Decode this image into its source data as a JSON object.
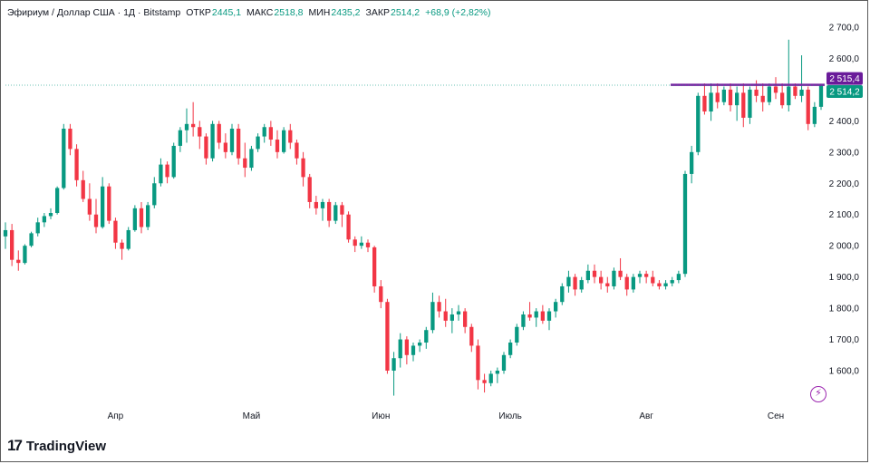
{
  "header": {
    "symbol": "Эфириум / Доллар США · 1Д · Bitstamp",
    "open_label": "ОТКР",
    "open": "2445,1",
    "high_label": "МАКС",
    "high": "2518,8",
    "low_label": "МИН",
    "low": "2435,2",
    "close_label": "ЗАКР",
    "close": "2514,2",
    "change": "+68,9 (+2,82%)"
  },
  "brand": {
    "name": "TradingView",
    "mark": "17"
  },
  "colors": {
    "up": "#089981",
    "down": "#f23645",
    "line": "#7b1fa2",
    "price_tag": "#089981",
    "line_tag": "#6a1b9a"
  },
  "chart_data": {
    "type": "candlestick",
    "price_scale": {
      "min": 1500,
      "max": 2700,
      "ticks": [
        "2 700,0",
        "2 600,0",
        "2 500,0",
        "2 400,0",
        "2 300,0",
        "2 200,0",
        "2 100,0",
        "2 000,0",
        "1 900,0",
        "1 800,0",
        "1 700,0",
        "1 600,0"
      ]
    },
    "time_labels": [
      {
        "label": "Апр",
        "index": 17
      },
      {
        "label": "Май",
        "index": 38
      },
      {
        "label": "Июн",
        "index": 58
      },
      {
        "label": "Июль",
        "index": 78
      },
      {
        "label": "Авг",
        "index": 99
      },
      {
        "label": "Сен",
        "index": 119
      }
    ],
    "horizontal_line": {
      "value": 2515.4,
      "label": "2 515,4"
    },
    "last_price": {
      "value": 2514.2,
      "label": "2 514,2"
    },
    "candles": [
      [
        2030,
        2075,
        1990,
        2050
      ],
      [
        2050,
        2070,
        1935,
        1955
      ],
      [
        1955,
        1985,
        1920,
        1945
      ],
      [
        1945,
        2005,
        1940,
        2000
      ],
      [
        2000,
        2045,
        1995,
        2040
      ],
      [
        2040,
        2090,
        2030,
        2075
      ],
      [
        2075,
        2105,
        2060,
        2095
      ],
      [
        2095,
        2120,
        2085,
        2105
      ],
      [
        2105,
        2190,
        2100,
        2185
      ],
      [
        2185,
        2390,
        2180,
        2375
      ],
      [
        2375,
        2390,
        2290,
        2310
      ],
      [
        2310,
        2325,
        2190,
        2210
      ],
      [
        2210,
        2240,
        2140,
        2150
      ],
      [
        2150,
        2200,
        2080,
        2100
      ],
      [
        2100,
        2150,
        2040,
        2060
      ],
      [
        2060,
        2220,
        2055,
        2190
      ],
      [
        2190,
        2200,
        2070,
        2080
      ],
      [
        2080,
        2090,
        1990,
        2010
      ],
      [
        2010,
        2020,
        1955,
        1990
      ],
      [
        1990,
        2060,
        1985,
        2050
      ],
      [
        2050,
        2130,
        2045,
        2120
      ],
      [
        2120,
        2140,
        2040,
        2060
      ],
      [
        2060,
        2140,
        2050,
        2130
      ],
      [
        2130,
        2220,
        2120,
        2200
      ],
      [
        2200,
        2280,
        2190,
        2260
      ],
      [
        2260,
        2270,
        2200,
        2220
      ],
      [
        2220,
        2330,
        2215,
        2320
      ],
      [
        2320,
        2380,
        2300,
        2370
      ],
      [
        2370,
        2440,
        2330,
        2390
      ],
      [
        2390,
        2460,
        2350,
        2380
      ],
      [
        2380,
        2400,
        2310,
        2350
      ],
      [
        2350,
        2360,
        2260,
        2280
      ],
      [
        2280,
        2400,
        2270,
        2390
      ],
      [
        2390,
        2400,
        2310,
        2330
      ],
      [
        2330,
        2360,
        2280,
        2300
      ],
      [
        2300,
        2390,
        2290,
        2375
      ],
      [
        2375,
        2390,
        2260,
        2280
      ],
      [
        2280,
        2330,
        2220,
        2250
      ],
      [
        2250,
        2320,
        2240,
        2310
      ],
      [
        2310,
        2360,
        2300,
        2350
      ],
      [
        2350,
        2390,
        2330,
        2380
      ],
      [
        2380,
        2400,
        2320,
        2340
      ],
      [
        2340,
        2370,
        2280,
        2300
      ],
      [
        2300,
        2380,
        2295,
        2370
      ],
      [
        2370,
        2390,
        2310,
        2330
      ],
      [
        2330,
        2340,
        2260,
        2280
      ],
      [
        2280,
        2300,
        2190,
        2220
      ],
      [
        2220,
        2230,
        2120,
        2140
      ],
      [
        2140,
        2160,
        2100,
        2120
      ],
      [
        2120,
        2150,
        2080,
        2140
      ],
      [
        2140,
        2150,
        2060,
        2080
      ],
      [
        2080,
        2140,
        2070,
        2130
      ],
      [
        2130,
        2140,
        2060,
        2100
      ],
      [
        2100,
        2110,
        2010,
        2020
      ],
      [
        2020,
        2030,
        1980,
        2000
      ],
      [
        2000,
        2030,
        1990,
        2010
      ],
      [
        2010,
        2020,
        1980,
        1995
      ],
      [
        1995,
        2000,
        1850,
        1870
      ],
      [
        1870,
        1890,
        1800,
        1820
      ],
      [
        1820,
        1830,
        1590,
        1600
      ],
      [
        1600,
        1660,
        1520,
        1640
      ],
      [
        1640,
        1720,
        1610,
        1700
      ],
      [
        1700,
        1710,
        1620,
        1650
      ],
      [
        1650,
        1690,
        1630,
        1680
      ],
      [
        1680,
        1700,
        1660,
        1690
      ],
      [
        1690,
        1740,
        1670,
        1730
      ],
      [
        1730,
        1850,
        1720,
        1820
      ],
      [
        1820,
        1840,
        1770,
        1790
      ],
      [
        1790,
        1830,
        1740,
        1760
      ],
      [
        1760,
        1800,
        1720,
        1780
      ],
      [
        1780,
        1810,
        1760,
        1790
      ],
      [
        1790,
        1800,
        1720,
        1740
      ],
      [
        1740,
        1750,
        1660,
        1680
      ],
      [
        1680,
        1700,
        1540,
        1570
      ],
      [
        1570,
        1590,
        1530,
        1560
      ],
      [
        1560,
        1600,
        1550,
        1590
      ],
      [
        1590,
        1610,
        1560,
        1600
      ],
      [
        1600,
        1660,
        1590,
        1650
      ],
      [
        1650,
        1700,
        1640,
        1690
      ],
      [
        1690,
        1750,
        1680,
        1740
      ],
      [
        1740,
        1790,
        1730,
        1780
      ],
      [
        1780,
        1820,
        1760,
        1770
      ],
      [
        1770,
        1800,
        1740,
        1790
      ],
      [
        1790,
        1810,
        1750,
        1760
      ],
      [
        1760,
        1800,
        1730,
        1790
      ],
      [
        1790,
        1830,
        1770,
        1820
      ],
      [
        1820,
        1880,
        1810,
        1870
      ],
      [
        1870,
        1920,
        1850,
        1900
      ],
      [
        1900,
        1910,
        1840,
        1860
      ],
      [
        1860,
        1900,
        1850,
        1890
      ],
      [
        1890,
        1940,
        1880,
        1920
      ],
      [
        1920,
        1940,
        1880,
        1900
      ],
      [
        1900,
        1920,
        1860,
        1880
      ],
      [
        1880,
        1900,
        1850,
        1870
      ],
      [
        1870,
        1930,
        1860,
        1920
      ],
      [
        1920,
        1960,
        1890,
        1900
      ],
      [
        1900,
        1910,
        1840,
        1860
      ],
      [
        1860,
        1910,
        1850,
        1900
      ],
      [
        1900,
        1920,
        1880,
        1910
      ],
      [
        1910,
        1920,
        1880,
        1900
      ],
      [
        1900,
        1920,
        1870,
        1880
      ],
      [
        1880,
        1890,
        1860,
        1870
      ],
      [
        1870,
        1890,
        1860,
        1880
      ],
      [
        1880,
        1900,
        1870,
        1890
      ],
      [
        1890,
        1920,
        1880,
        1910
      ],
      [
        1910,
        2240,
        1900,
        2230
      ],
      [
        2230,
        2320,
        2200,
        2300
      ],
      [
        2300,
        2490,
        2290,
        2480
      ],
      [
        2480,
        2520,
        2420,
        2430
      ],
      [
        2430,
        2520,
        2400,
        2490
      ],
      [
        2490,
        2520,
        2440,
        2460
      ],
      [
        2460,
        2510,
        2450,
        2500
      ],
      [
        2500,
        2520,
        2430,
        2450
      ],
      [
        2450,
        2510,
        2400,
        2490
      ],
      [
        2490,
        2520,
        2380,
        2410
      ],
      [
        2410,
        2510,
        2390,
        2500
      ],
      [
        2500,
        2530,
        2460,
        2480
      ],
      [
        2480,
        2520,
        2430,
        2460
      ],
      [
        2460,
        2520,
        2450,
        2510
      ],
      [
        2510,
        2540,
        2470,
        2490
      ],
      [
        2490,
        2520,
        2440,
        2450
      ],
      [
        2450,
        2660,
        2430,
        2510
      ],
      [
        2510,
        2520,
        2470,
        2480
      ],
      [
        2480,
        2610,
        2460,
        2500
      ],
      [
        2500,
        2510,
        2370,
        2390
      ],
      [
        2390,
        2460,
        2380,
        2445
      ],
      [
        2445,
        2518.8,
        2435.2,
        2514.2
      ]
    ]
  }
}
